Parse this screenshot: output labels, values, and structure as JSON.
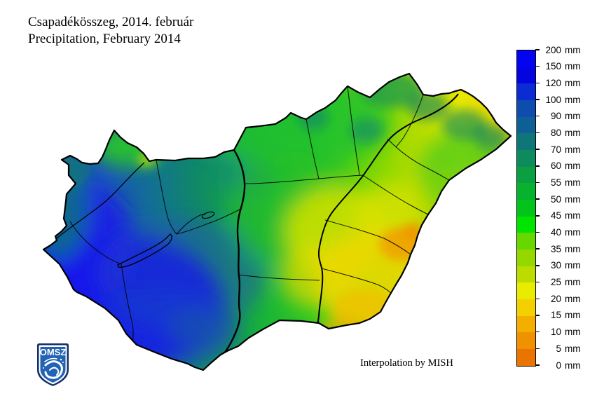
{
  "title": {
    "line1": "Csapadékösszeg, 2014. február",
    "line2": "Precipitation, February 2014"
  },
  "annotation": {
    "interpolation_note": "Interpolation by MISH"
  },
  "logo": {
    "label": "OMSZ",
    "shield_color": "#2263b4",
    "shield_border_color": "#122d66"
  },
  "map": {
    "region": "Hungary",
    "quantity": "precipitation sum",
    "high_area": "southwest (blue, 100-200 mm)",
    "low_area": "southeast (orange, 0-25 mm)"
  },
  "legend": {
    "unit": "mm",
    "values": [
      "200",
      "150",
      "120",
      "100",
      "90",
      "80",
      "70",
      "60",
      "55",
      "50",
      "45",
      "40",
      "35",
      "30",
      "25",
      "20",
      "15",
      "10",
      "5",
      "0"
    ],
    "segment_colors": [
      "#0404f2",
      "#0404e0",
      "#0a2cd2",
      "#0e4cae",
      "#0d5f96",
      "#0e7678",
      "#0e8b5c",
      "#0aa042",
      "#06b22e",
      "#02c41a",
      "#00e400",
      "#66d800",
      "#94d800",
      "#bcdc00",
      "#e8ec00",
      "#f4d000",
      "#f4ae00",
      "#f09200",
      "#ea7400"
    ]
  }
}
